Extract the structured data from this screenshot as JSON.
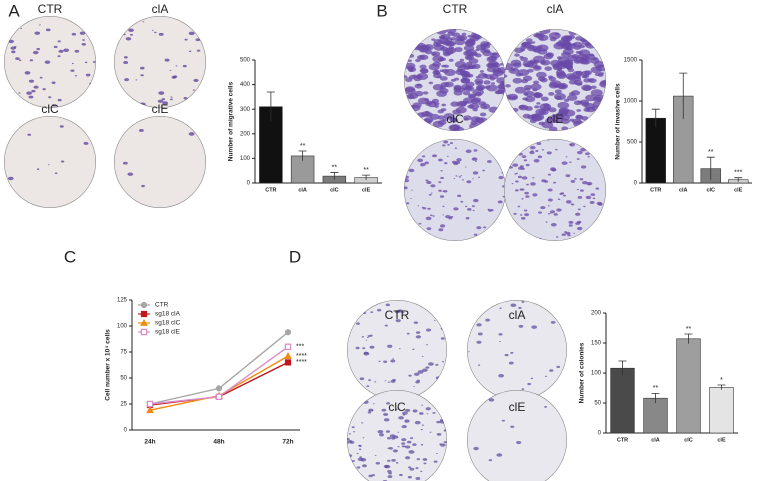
{
  "panels": [
    {
      "label": "A",
      "images": [
        "CTR",
        "clA",
        "clC",
        "clE"
      ]
    },
    {
      "label": "B",
      "images": [
        "CTR",
        "clA",
        "clC",
        "clE"
      ]
    },
    {
      "label": "C"
    },
    {
      "label": "D",
      "images": [
        "CTR",
        "clA",
        "clC",
        "clE"
      ]
    }
  ],
  "chart_data": [
    {
      "type": "bar",
      "y_label": "Number of migrative cells",
      "categories": [
        "CTR",
        "clA",
        "clC",
        "clE"
      ],
      "values": [
        310,
        110,
        28,
        22
      ],
      "errors": [
        60,
        20,
        15,
        10
      ],
      "annotations": [
        null,
        "**",
        "**",
        "**"
      ],
      "colors": [
        "#111111",
        "#9a9a9a",
        "#7c7c7c",
        "#cfcfcf"
      ],
      "ylim": [
        0,
        500
      ],
      "yticks": [
        0,
        100,
        200,
        300,
        400,
        500
      ]
    },
    {
      "type": "bar",
      "y_label": "Number of invasive cells",
      "categories": [
        "CTR",
        "clA",
        "clC",
        "clE"
      ],
      "values": [
        790,
        1060,
        175,
        40
      ],
      "errors": [
        110,
        280,
        140,
        25
      ],
      "annotations": [
        null,
        null,
        "**",
        "***"
      ],
      "colors": [
        "#111111",
        "#9a9a9a",
        "#7c7c7c",
        "#cfcfcf"
      ],
      "ylim": [
        0,
        1500
      ],
      "yticks": [
        0,
        500,
        1000,
        1500
      ]
    },
    {
      "type": "line",
      "y_label": "Cell number x 10⁴ cells",
      "categories": [
        "24h",
        "48h",
        "72h"
      ],
      "series": [
        {
          "name": "CTR",
          "color": "#a6a6a6",
          "marker": "circle",
          "values": [
            25,
            40,
            94
          ]
        },
        {
          "name": "sg18 clA",
          "color": "#c0171c",
          "marker": "square",
          "values": [
            24,
            32,
            65
          ],
          "annotation": "****"
        },
        {
          "name": "sg18 clC",
          "color": "#f08a12",
          "marker": "triangle",
          "values": [
            19,
            33,
            71
          ],
          "annotation": "****"
        },
        {
          "name": "sg18 clE",
          "color": "#d98fc8",
          "marker": "open-square",
          "values": [
            25,
            32,
            80
          ],
          "annotation": "***"
        }
      ],
      "ylim": [
        0,
        125
      ],
      "yticks": [
        0,
        25,
        50,
        75,
        100,
        125
      ]
    },
    {
      "type": "bar",
      "y_label": "Number of colonies",
      "categories": [
        "CTR",
        "clA",
        "clC",
        "clE"
      ],
      "values": [
        108,
        58,
        157,
        76
      ],
      "errors": [
        12,
        8,
        8,
        4
      ],
      "annotations": [
        null,
        "**",
        "**",
        "*"
      ],
      "colors": [
        "#4a4a4a",
        "#888888",
        "#9e9e9e",
        "#e4e4e4"
      ],
      "ylim": [
        0,
        200
      ],
      "yticks": [
        0,
        50,
        100,
        150,
        200
      ]
    }
  ]
}
